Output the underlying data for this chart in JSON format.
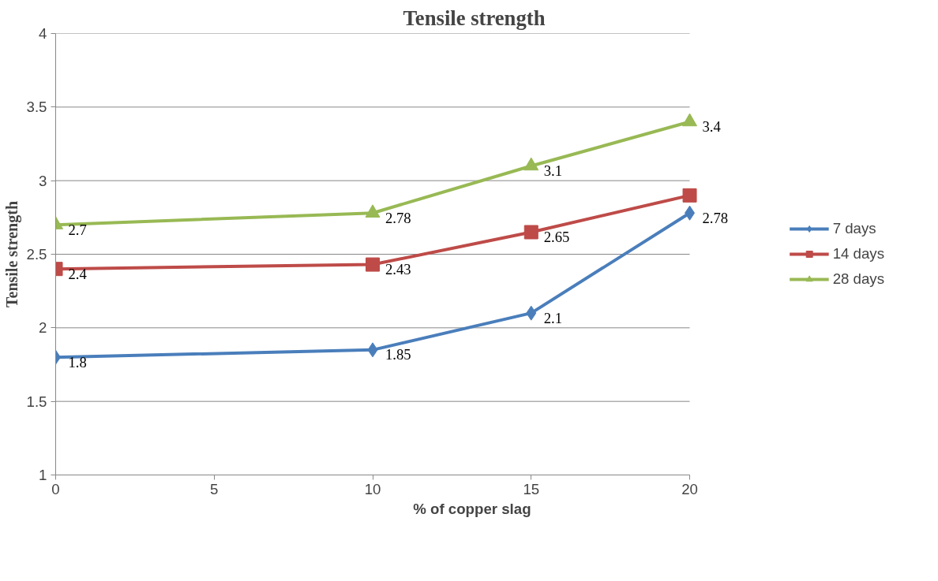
{
  "chart_data": {
    "type": "line",
    "title": "Tensile strength",
    "xlabel": "% of  copper slag",
    "ylabel": "Tensile strength",
    "x": [
      0,
      10,
      15,
      20
    ],
    "xlim": [
      0,
      20
    ],
    "xticks": [
      0,
      5,
      10,
      15,
      20
    ],
    "ylim": [
      1,
      4
    ],
    "yticks": [
      1,
      1.5,
      2,
      2.5,
      3,
      3.5,
      4
    ],
    "grid": "y",
    "legend": "right",
    "series": [
      {
        "name": "7 days",
        "color": "#4a7ebb",
        "marker": "diamond",
        "values": [
          1.8,
          1.85,
          2.1,
          2.78
        ],
        "value_labels": [
          "1.8",
          "1.85",
          "2.1",
          "2.78"
        ]
      },
      {
        "name": "14 days",
        "color": "#be4b48",
        "marker": "square",
        "values": [
          2.4,
          2.43,
          2.65,
          2.9
        ],
        "value_labels": [
          "2.4",
          "2.43",
          "2.65",
          null
        ]
      },
      {
        "name": "28 days",
        "color": "#98b954",
        "marker": "triangle",
        "values": [
          2.7,
          2.78,
          3.1,
          3.4
        ],
        "value_labels": [
          "2.7",
          "2.78",
          "3.1",
          "3.4"
        ]
      }
    ]
  }
}
